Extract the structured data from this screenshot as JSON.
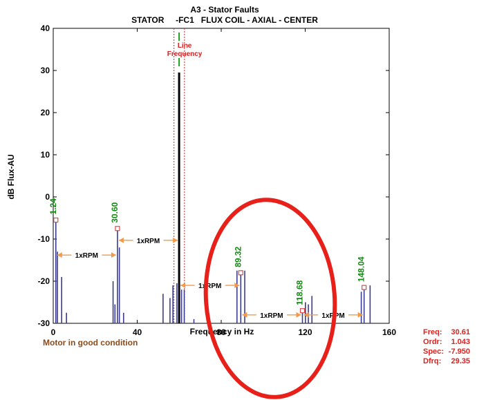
{
  "chart_data": {
    "type": "bar",
    "title": "A3   - Stator Faults",
    "subtitle": "STATOR     -FC1   FLUX COIL - AXIAL - CENTER",
    "xlabel": "Frequency in Hz",
    "ylabel": "dB Flux-AU",
    "xlim": [
      0,
      160
    ],
    "ylim": [
      -30,
      40
    ],
    "x_ticks": [
      "0",
      "40",
      "80",
      "120",
      "160"
    ],
    "y_ticks": [
      "40",
      "30",
      "20",
      "10",
      "0",
      "-10",
      "-20",
      "-30"
    ],
    "grid": false,
    "spectrum": [
      {
        "x": 1.24,
        "y": -5.5
      },
      {
        "x": 2.0,
        "y": -13
      },
      {
        "x": 4.0,
        "y": -19
      },
      {
        "x": 6.3,
        "y": -27.5
      },
      {
        "x": 28.5,
        "y": -20
      },
      {
        "x": 29.4,
        "y": -25.5
      },
      {
        "x": 30.6,
        "y": -7.5
      },
      {
        "x": 31.5,
        "y": -12
      },
      {
        "x": 33.5,
        "y": -27.5
      },
      {
        "x": 52.3,
        "y": -23
      },
      {
        "x": 55.6,
        "y": -24
      },
      {
        "x": 57.0,
        "y": -21
      },
      {
        "x": 58.9,
        "y": -20.5
      },
      {
        "x": 59.95,
        "y": 29.5
      },
      {
        "x": 61.1,
        "y": -22
      },
      {
        "x": 62.4,
        "y": -22
      },
      {
        "x": 67.0,
        "y": -29
      },
      {
        "x": 87.5,
        "y": -17.5
      },
      {
        "x": 89.32,
        "y": -18
      },
      {
        "x": 91.2,
        "y": -17.5
      },
      {
        "x": 118.68,
        "y": -27
      },
      {
        "x": 120.1,
        "y": -25
      },
      {
        "x": 121.5,
        "y": -25.5
      },
      {
        "x": 123.2,
        "y": -23.5
      },
      {
        "x": 146.7,
        "y": -22.5
      },
      {
        "x": 148.04,
        "y": -21.5
      },
      {
        "x": 150.9,
        "y": -21
      }
    ],
    "highlighted_bar_x": 59.95,
    "peak_labels": [
      {
        "x": 1.24,
        "y": -5.5,
        "label": "1.24"
      },
      {
        "x": 30.6,
        "y": -7.5,
        "label": "30.60"
      },
      {
        "x": 89.32,
        "y": -18,
        "label": "89.32"
      },
      {
        "x": 118.68,
        "y": -27,
        "label": "118.68"
      },
      {
        "x": 148.04,
        "y": -21.5,
        "label": "148.04"
      }
    ],
    "rpm_intervals": [
      {
        "x1": 1.24,
        "x2": 30.6,
        "y": -13.8,
        "label": "1xRPM"
      },
      {
        "x1": 30.6,
        "x2": 59.95,
        "y": -10.3,
        "label": "1xRPM"
      },
      {
        "x1": 59.95,
        "x2": 89.32,
        "y": -21.0,
        "label": "1xRPM"
      },
      {
        "x1": 89.32,
        "x2": 118.68,
        "y": -28.0,
        "label": "1xRPM"
      },
      {
        "x1": 118.68,
        "x2": 148.04,
        "y": -28.0,
        "label": "1xRPM"
      }
    ],
    "line_frequency": {
      "label_line1": "Line",
      "label_line2": "Frequency",
      "band": [
        57.5,
        62.5
      ],
      "center": 59.95
    }
  },
  "status_text": "Motor in good condition",
  "readout": {
    "freq_label": "Freq:",
    "freq_value": "30.61",
    "ordr_label": "Ordr:",
    "ordr_value": "1.043",
    "spec_label": "Spec:",
    "spec_value": "-7.950",
    "dfrq_label": "Dfrq:",
    "dfrq_value": "29.35"
  },
  "colors": {
    "spectrum": "#3a3a8f",
    "highlight": "#000000",
    "peak_label": "#128a12",
    "rpm_arrow": "#f39a4a",
    "line_frequency": "#e0201e",
    "marker": "#d94a4a",
    "annotation_circle": "#e8201a"
  }
}
